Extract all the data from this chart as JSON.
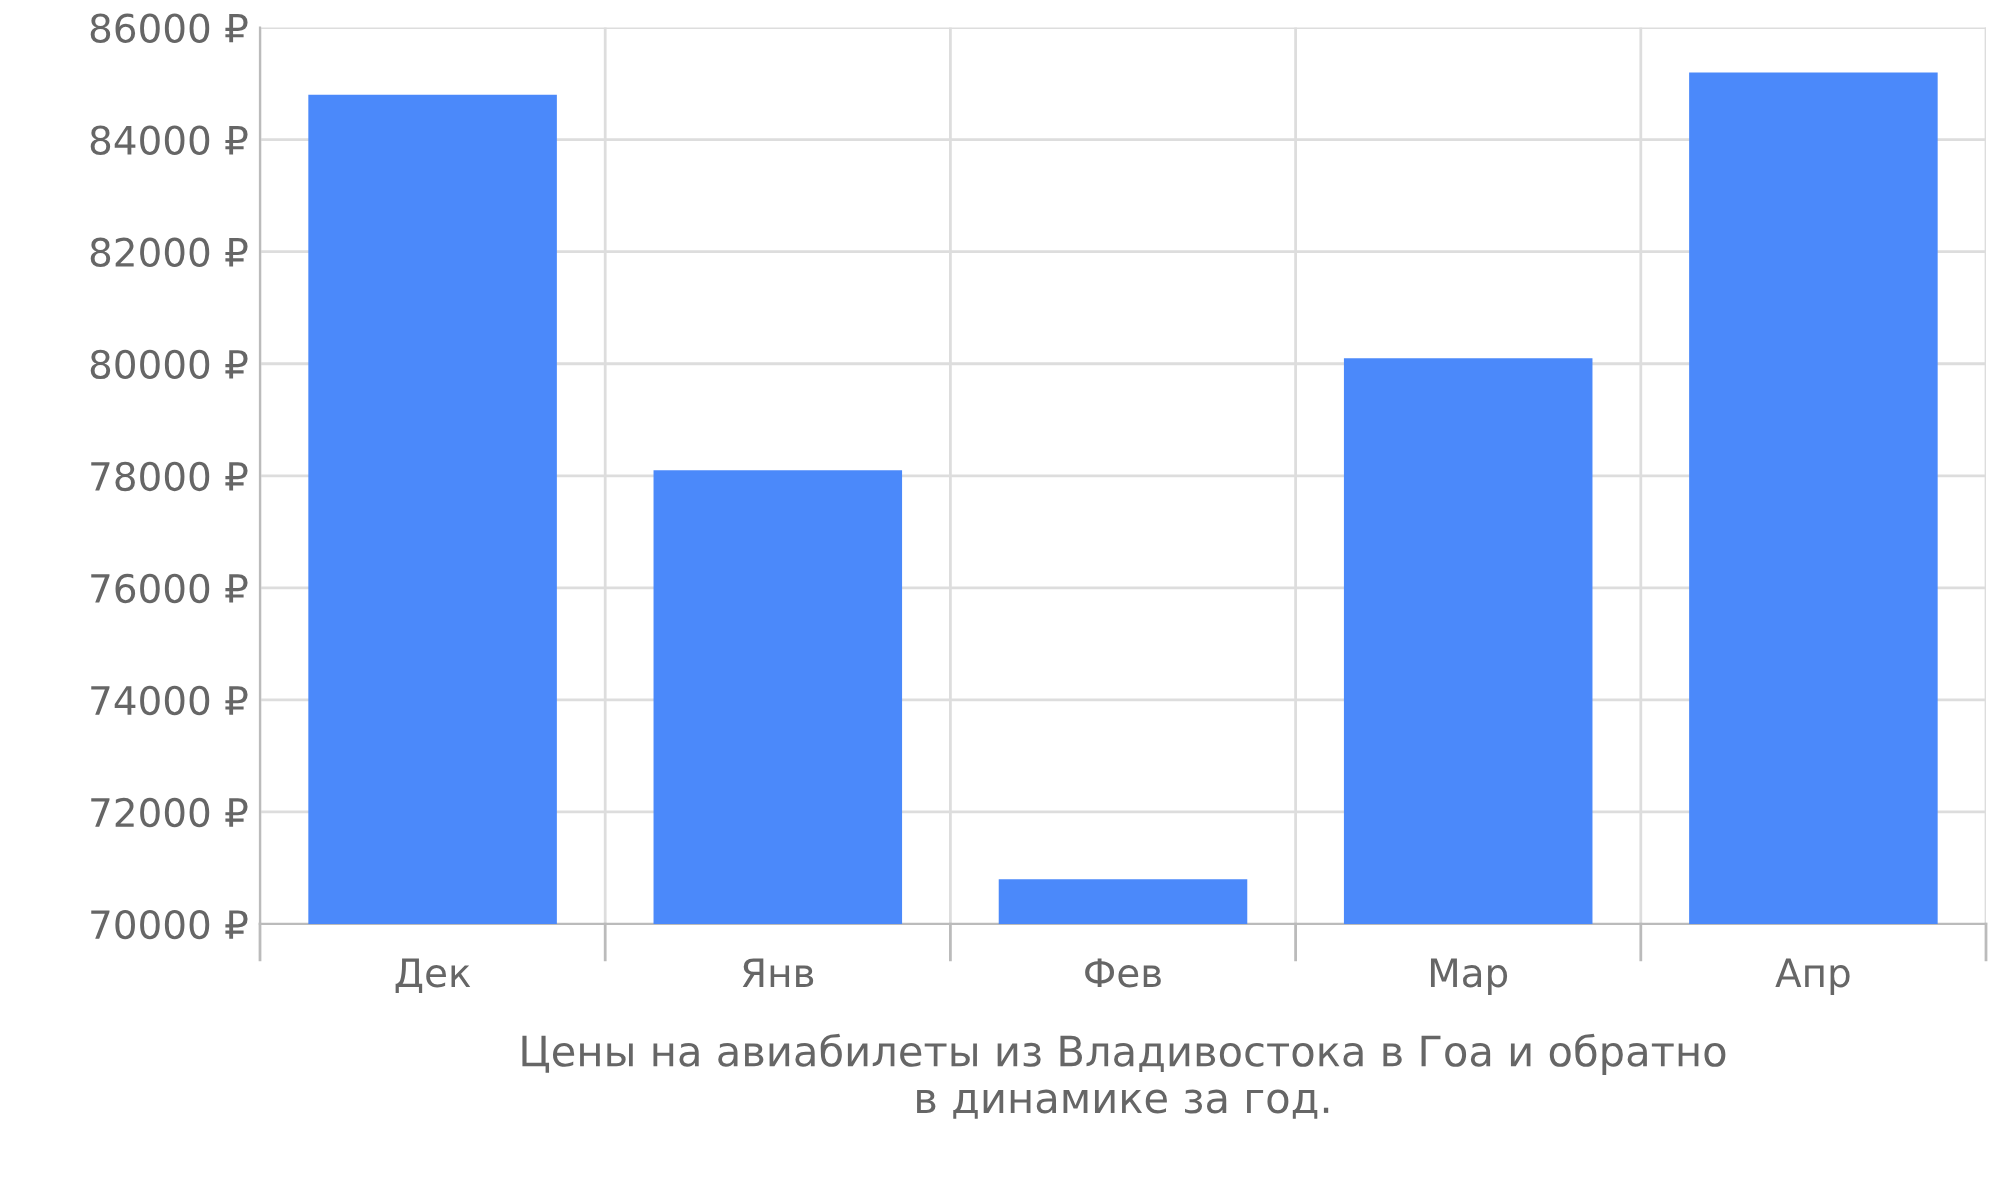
{
  "chart_data": {
    "type": "bar",
    "xlabel": "Цены на авиабилеты из Владивостока в Гоа и обратно\nв динамике за год.",
    "categories": [
      "Дек",
      "Янв",
      "Фев",
      "Мар",
      "Апр"
    ],
    "values": [
      84800,
      78100,
      70800,
      80100,
      85200
    ],
    "color": "#4b89fa",
    "ylim": [
      70000,
      86000
    ],
    "yticks": [
      {
        "value": 70000,
        "label": "70000 ₽"
      },
      {
        "value": 72000,
        "label": "72000 ₽"
      },
      {
        "value": 74000,
        "label": "74000 ₽"
      },
      {
        "value": 76000,
        "label": "76000 ₽"
      },
      {
        "value": 78000,
        "label": "78000 ₽"
      },
      {
        "value": 80000,
        "label": "80000 ₽"
      },
      {
        "value": 82000,
        "label": "82000 ₽"
      },
      {
        "value": 84000,
        "label": "84000 ₽"
      },
      {
        "value": 86000,
        "label": "86000 ₽"
      }
    ],
    "grid": true
  }
}
